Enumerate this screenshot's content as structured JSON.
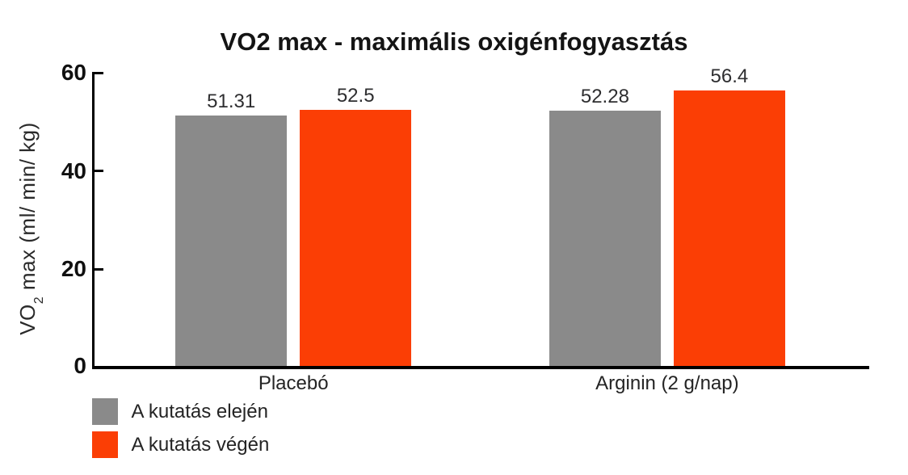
{
  "chart_data": {
    "type": "bar",
    "title": "VO2 max - maximális oxigénfogyasztás",
    "ylabel": "VO2 max (ml/ min/ kg)",
    "ylabel_parts": {
      "pre": "VO",
      "sub": "2",
      "post": " max (ml/ min/ kg)"
    },
    "xlabel": "",
    "categories": [
      "Placebó",
      "Arginin (2 g/nap)"
    ],
    "series": [
      {
        "name": "A kutatás elején",
        "color": "#8a8a8a",
        "values": [
          51.31,
          52.28
        ]
      },
      {
        "name": "A kutatás végén",
        "color": "#fb3e05",
        "values": [
          52.5,
          56.4
        ]
      }
    ],
    "value_labels": [
      [
        "51.31",
        "52.28"
      ],
      [
        "52.5",
        "56.4"
      ]
    ],
    "yticks": [
      0,
      20,
      40,
      60
    ],
    "ylim": [
      0,
      60
    ],
    "grid": false,
    "legend_position": "bottom-left",
    "colors": {
      "axis": "#000000",
      "title_text": "#141414",
      "label_text": "#242424",
      "background": "#ffffff"
    }
  }
}
